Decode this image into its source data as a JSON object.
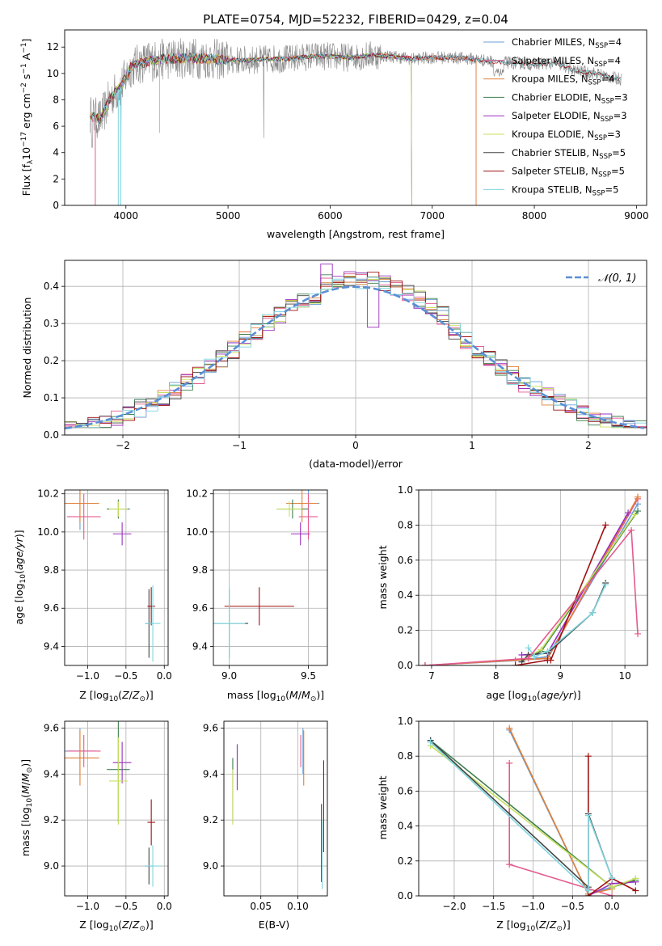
{
  "figure": {
    "title": "PLATE=0754, MJD=52232, FIBERID=0429, z=0.04"
  },
  "model_colors": {
    "Chabrier MILES": "#6a9fd4",
    "Salpeter MILES": "#e45a8f",
    "Kroupa MILES": "#e0803a",
    "Chabrier ELODIE": "#3f7f4f",
    "Salpeter ELODIE": "#9b2fbf",
    "Kroupa ELODIE": "#c8e060",
    "Chabrier STELIB": "#444444",
    "Salpeter STELIB": "#a01010",
    "Kroupa STELIB": "#7fd6df"
  },
  "chart_data": [
    {
      "id": "spectrum",
      "type": "line",
      "title": "PLATE=0754, MJD=52232, FIBERID=0429, z=0.04",
      "xlabel": "wavelength [Angstrom, rest frame]",
      "ylabel": "Flux [f_λ10^-17 erg cm^-2 s^-1 A^-1]",
      "xlim": [
        3400,
        9100
      ],
      "ylim": [
        0,
        13.3
      ],
      "xticks": [
        4000,
        5000,
        6000,
        7000,
        8000,
        9000
      ],
      "yticks": [
        0,
        2,
        4,
        6,
        8,
        10,
        12
      ],
      "grid": false,
      "legend_position": "top-right",
      "legend": [
        {
          "label": "Chabrier MILES, N",
          "sub": "SSP",
          "post": "=4"
        },
        {
          "label": "Salpeter MILES, N",
          "sub": "SSP",
          "post": "=4"
        },
        {
          "label": "Kroupa MILES, N",
          "sub": "SSP",
          "post": "=4"
        },
        {
          "label": "Chabrier ELODIE, N",
          "sub": "SSP",
          "post": "=3"
        },
        {
          "label": "Salpeter ELODIE, N",
          "sub": "SSP",
          "post": "=3"
        },
        {
          "label": "Kroupa ELODIE, N",
          "sub": "SSP",
          "post": "=3"
        },
        {
          "label": "Chabrier STELIB, N",
          "sub": "SSP",
          "post": "=5"
        },
        {
          "label": "Salpeter STELIB, N",
          "sub": "SSP",
          "post": "=5"
        },
        {
          "label": "Kroupa STELIB, N",
          "sub": "SSP",
          "post": "=5"
        }
      ],
      "continuum": {
        "wavelength": [
          3650,
          3750,
          3850,
          3950,
          4050,
          4200,
          4400,
          4600,
          4800,
          5000,
          5200,
          5400,
          5600,
          5800,
          6000,
          6200,
          6400,
          6600,
          6800,
          7000,
          7200,
          7400,
          7600,
          7800,
          8000,
          8200,
          8400,
          8600,
          8800
        ],
        "flux": [
          6.8,
          6.5,
          8.2,
          9.0,
          10.5,
          10.9,
          11.1,
          11.2,
          11.1,
          11.0,
          11.0,
          11.1,
          11.1,
          11.3,
          11.3,
          11.2,
          11.4,
          11.3,
          11.1,
          11.2,
          11.2,
          11.1,
          10.9,
          10.8,
          10.7,
          10.8,
          10.2,
          10.0,
          9.6
        ]
      }
    },
    {
      "id": "residuals",
      "type": "line",
      "xlabel": "(data-model)/error",
      "ylabel": "Normed distribution",
      "xlim": [
        -2.5,
        2.5
      ],
      "ylim": [
        0,
        0.47
      ],
      "xticks": [
        -2,
        -1,
        0,
        1,
        2
      ],
      "yticks": [
        0.0,
        0.1,
        0.2,
        0.3,
        0.4
      ],
      "grid": true,
      "legend_position": "top-right",
      "legend": [
        {
          "label": "𝒩(0, 1)"
        }
      ],
      "bin_width": 0.1,
      "gaussian": {
        "mean": 0,
        "sigma": 1
      }
    },
    {
      "id": "Z-age",
      "type": "scatter",
      "xlabel": "Z [log10(Z/Z⊙)]",
      "ylabel": "age  [log10(age/yr)]",
      "xlim": [
        -1.3,
        0.05
      ],
      "ylim": [
        9.3,
        10.22
      ],
      "xticks": [
        -1.0,
        -0.5,
        0.0
      ],
      "yticks": [
        9.4,
        9.6,
        9.8,
        10.0,
        10.2
      ],
      "grid": true,
      "points": [
        {
          "model": "Chabrier MILES",
          "x": -1.1,
          "xerr": 0.2,
          "y": 10.15,
          "yerr": 0.14
        },
        {
          "model": "Salpeter MILES",
          "x": -1.05,
          "xerr": 0.22,
          "y": 10.08,
          "yerr": 0.12
        },
        {
          "model": "Kroupa MILES",
          "x": -1.1,
          "xerr": 0.25,
          "y": 10.15,
          "yerr": 0.1
        },
        {
          "model": "Chabrier ELODIE",
          "x": -0.6,
          "xerr": 0.15,
          "y": 10.12,
          "yerr": 0.05
        },
        {
          "model": "Salpeter ELODIE",
          "x": -0.55,
          "xerr": 0.12,
          "y": 9.99,
          "yerr": 0.06
        },
        {
          "model": "Kroupa ELODIE",
          "x": -0.6,
          "xerr": 0.12,
          "y": 10.12,
          "yerr": 0.04
        },
        {
          "model": "Chabrier STELIB",
          "x": -0.2,
          "xerr": 0.05,
          "y": 9.52,
          "yerr": 0.18
        },
        {
          "model": "Salpeter STELIB",
          "x": -0.17,
          "xerr": 0.05,
          "y": 9.61,
          "yerr": 0.1
        },
        {
          "model": "Kroupa STELIB",
          "x": -0.15,
          "xerr": 0.1,
          "y": 9.52,
          "yerr": 0.2
        }
      ]
    },
    {
      "id": "mass-age",
      "type": "scatter",
      "xlabel": "mass [log10(M/M⊙)]",
      "ylabel": "",
      "xlim": [
        8.9,
        9.62
      ],
      "ylim": [
        9.3,
        10.22
      ],
      "xticks": [
        9.0,
        9.5
      ],
      "yticks": [
        9.4,
        9.6,
        9.8,
        10.0,
        10.2
      ],
      "grid": true,
      "points": [
        {
          "model": "Chabrier MILES",
          "x": 9.5,
          "xerr": 0.07,
          "y": 10.15,
          "yerr": 0.14
        },
        {
          "model": "Salpeter MILES",
          "x": 9.5,
          "xerr": 0.06,
          "y": 10.08,
          "yerr": 0.12
        },
        {
          "model": "Kroupa MILES",
          "x": 9.46,
          "xerr": 0.1,
          "y": 10.15,
          "yerr": 0.1
        },
        {
          "model": "Chabrier ELODIE",
          "x": 9.4,
          "xerr": 0.1,
          "y": 10.12,
          "yerr": 0.05
        },
        {
          "model": "Salpeter ELODIE",
          "x": 9.45,
          "xerr": 0.06,
          "y": 9.99,
          "yerr": 0.06
        },
        {
          "model": "Kroupa ELODIE",
          "x": 9.38,
          "xerr": 0.08,
          "y": 10.12,
          "yerr": 0.04
        },
        {
          "model": "Chabrier STELIB",
          "x": 9.0,
          "xerr": 0.12,
          "y": 9.52,
          "yerr": 0.18
        },
        {
          "model": "Salpeter STELIB",
          "x": 9.19,
          "xerr": 0.22,
          "y": 9.61,
          "yerr": 0.1
        },
        {
          "model": "Kroupa STELIB",
          "x": 9.0,
          "xerr": 0.1,
          "y": 9.52,
          "yerr": 0.2
        }
      ]
    },
    {
      "id": "age-massweight",
      "type": "line",
      "xlabel": "age  [log10(age/yr)]",
      "ylabel": "mass weight",
      "xlim": [
        6.8,
        10.35
      ],
      "ylim": [
        0,
        1.0
      ],
      "xticks": [
        7,
        8,
        9,
        10
      ],
      "yticks": [
        0.0,
        0.2,
        0.4,
        0.6,
        0.8,
        1.0
      ],
      "grid": true,
      "series": [
        {
          "model": "Chabrier MILES",
          "x": [
            6.9,
            8.4,
            8.8,
            10.2
          ],
          "y": [
            0.0,
            0.03,
            0.05,
            0.92
          ]
        },
        {
          "model": "Salpeter MILES",
          "x": [
            6.9,
            8.3,
            8.8,
            10.2
          ],
          "y": [
            0.0,
            0.03,
            0.04,
            0.95
          ]
        },
        {
          "model": "Kroupa MILES",
          "x": [
            6.9,
            8.3,
            8.8,
            10.2
          ],
          "y": [
            0.0,
            0.03,
            0.04,
            0.96
          ]
        },
        {
          "model": "Chabrier ELODIE",
          "x": [
            8.5,
            8.7,
            10.2
          ],
          "y": [
            0.05,
            0.08,
            0.88
          ]
        },
        {
          "model": "Salpeter ELODIE",
          "x": [
            8.4,
            8.8,
            10.05
          ],
          "y": [
            0.06,
            0.07,
            0.87
          ]
        },
        {
          "model": "Kroupa ELODIE",
          "x": [
            8.5,
            8.7,
            10.15
          ],
          "y": [
            0.05,
            0.09,
            0.86
          ]
        },
        {
          "model": "Chabrier STELIB",
          "x": [
            8.4,
            8.5,
            8.8,
            9.5,
            9.7
          ],
          "y": [
            0.02,
            0.06,
            0.07,
            0.3,
            0.47
          ]
        },
        {
          "model": "Salpeter STELIB",
          "x": [
            8.3,
            8.8,
            8.85,
            9.7
          ],
          "y": [
            0.0,
            0.03,
            0.03,
            0.8
          ]
        },
        {
          "model": "Kroupa STELIB",
          "x": [
            8.5,
            8.6,
            8.8,
            9.5,
            9.7
          ],
          "y": [
            0.1,
            0.05,
            0.08,
            0.3,
            0.46
          ]
        },
        {
          "model": "Salpeter MILES",
          "x": [
            6.9,
            8.5,
            10.1,
            10.2
          ],
          "y": [
            0.0,
            0.04,
            0.77,
            0.18
          ]
        }
      ]
    },
    {
      "id": "Z-mass",
      "type": "scatter",
      "xlabel": "Z [log10(Z/Z⊙)]",
      "ylabel": "mass [log10(M/M⊙)]",
      "xlim": [
        -1.3,
        0.05
      ],
      "ylim": [
        8.87,
        9.63
      ],
      "xticks": [
        -1.0,
        -0.5,
        0.0
      ],
      "yticks": [
        9.0,
        9.2,
        9.4,
        9.6
      ],
      "grid": true,
      "points": [
        {
          "model": "Chabrier MILES",
          "x": -1.1,
          "xerr": 0.2,
          "y": 9.5,
          "yerr": 0.1
        },
        {
          "model": "Salpeter MILES",
          "x": -1.05,
          "xerr": 0.22,
          "y": 9.5,
          "yerr": 0.07
        },
        {
          "model": "Kroupa MILES",
          "x": -1.1,
          "xerr": 0.25,
          "y": 9.47,
          "yerr": 0.12
        },
        {
          "model": "Chabrier ELODIE",
          "x": -0.6,
          "xerr": 0.15,
          "y": 9.42,
          "yerr": 0.23
        },
        {
          "model": "Salpeter ELODIE",
          "x": -0.55,
          "xerr": 0.12,
          "y": 9.45,
          "yerr": 0.09
        },
        {
          "model": "Kroupa ELODIE",
          "x": -0.6,
          "xerr": 0.12,
          "y": 9.37,
          "yerr": 0.19
        },
        {
          "model": "Chabrier STELIB",
          "x": -0.2,
          "xerr": 0.05,
          "y": 9.0,
          "yerr": 0.08
        },
        {
          "model": "Salpeter STELIB",
          "x": -0.17,
          "xerr": 0.05,
          "y": 9.19,
          "yerr": 0.1
        },
        {
          "model": "Kroupa STELIB",
          "x": -0.15,
          "xerr": 0.1,
          "y": 9.0,
          "yerr": 0.09
        }
      ]
    },
    {
      "id": "ebv-mass",
      "type": "scatter",
      "xlabel": "E(B-V)",
      "ylabel": "",
      "xlim": [
        0.0,
        0.14
      ],
      "ylim": [
        8.87,
        9.63
      ],
      "xticks": [
        0.05,
        0.1
      ],
      "yticks": [
        9.0,
        9.2,
        9.4,
        9.6
      ],
      "grid": true,
      "points": [
        {
          "model": "Chabrier MILES",
          "x": 0.107,
          "y": 9.5,
          "yerr": 0.1
        },
        {
          "model": "Salpeter MILES",
          "x": 0.104,
          "y": 9.5,
          "yerr": 0.07
        },
        {
          "model": "Kroupa MILES",
          "x": 0.108,
          "y": 9.47,
          "yerr": 0.12
        },
        {
          "model": "Chabrier ELODIE",
          "x": 0.012,
          "y": 9.33,
          "yerr": 0.14
        },
        {
          "model": "Salpeter ELODIE",
          "x": 0.018,
          "y": 9.43,
          "yerr": 0.1
        },
        {
          "model": "Kroupa ELODIE",
          "x": 0.012,
          "y": 9.3,
          "yerr": 0.12
        },
        {
          "model": "Chabrier STELIB",
          "x": 0.132,
          "y": 9.1,
          "yerr": 0.17
        },
        {
          "model": "Salpeter STELIB",
          "x": 0.135,
          "y": 9.26,
          "yerr": 0.2
        },
        {
          "model": "Kroupa STELIB",
          "x": 0.133,
          "y": 9.05,
          "yerr": 0.15
        }
      ]
    },
    {
      "id": "Z-massweight",
      "type": "line",
      "xlabel": "Z [log10(Z/Z⊙)]",
      "ylabel": "mass weight",
      "xlim": [
        -2.45,
        0.45
      ],
      "ylim": [
        0,
        1.0
      ],
      "xticks": [
        -2.0,
        -1.5,
        -1.0,
        -0.5,
        0.0
      ],
      "yticks": [
        0.0,
        0.2,
        0.4,
        0.6,
        0.8,
        1.0
      ],
      "grid": true,
      "series": [
        {
          "model": "Chabrier MILES",
          "x": [
            -1.3,
            -0.3,
            0.0
          ],
          "y": [
            0.95,
            0.01,
            0.05
          ]
        },
        {
          "model": "Salpeter MILES",
          "x": [
            -1.3,
            -1.3,
            0.0
          ],
          "y": [
            0.76,
            0.18,
            0.0
          ]
        },
        {
          "model": "Kroupa MILES",
          "x": [
            -1.3,
            -0.3,
            0.0
          ],
          "y": [
            0.96,
            0.01,
            0.04
          ]
        },
        {
          "model": "Chabrier ELODIE",
          "x": [
            -2.3,
            0.0,
            0.3
          ],
          "y": [
            0.89,
            0.05,
            0.09
          ]
        },
        {
          "model": "Salpeter ELODIE",
          "x": [
            -0.3,
            0.0,
            0.3
          ],
          "y": [
            0.0,
            0.07,
            0.08
          ]
        },
        {
          "model": "Kroupa ELODIE",
          "x": [
            -2.3,
            0.0,
            0.3
          ],
          "y": [
            0.86,
            0.05,
            0.1
          ]
        },
        {
          "model": "Chabrier STELIB",
          "x": [
            -2.3,
            -0.3,
            -0.3,
            0.0
          ],
          "y": [
            0.89,
            0.05,
            0.47,
            0.1
          ]
        },
        {
          "model": "Salpeter STELIB",
          "x": [
            -0.3,
            -0.3,
            0.0,
            0.3
          ],
          "y": [
            0.8,
            0.0,
            0.1,
            0.03
          ]
        },
        {
          "model": "Kroupa STELIB",
          "x": [
            -2.3,
            -0.3,
            -0.3,
            0.0
          ],
          "y": [
            0.88,
            0.03,
            0.46,
            0.1
          ]
        }
      ]
    }
  ]
}
